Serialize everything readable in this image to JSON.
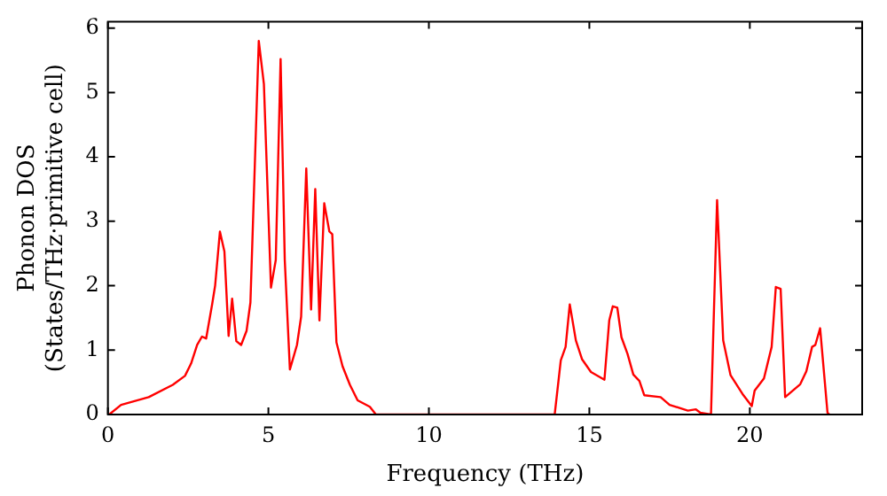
{
  "chart_data": {
    "type": "line",
    "xlabel": "Frequency (THz)",
    "ylabel": "Phonon DOS\n(States/THz·primitive cell)",
    "xlim": [
      0,
      23.5
    ],
    "ylim": [
      0,
      6.1
    ],
    "xticks": [
      0,
      5,
      10,
      15,
      20
    ],
    "yticks": [
      0,
      1,
      2,
      3,
      4,
      5,
      6
    ],
    "grid": false,
    "legend": false,
    "marker": "none",
    "line_style": "solid",
    "series": [
      {
        "color": "#ff0000",
        "x": [
          0.04,
          0.41,
          1.27,
          2.02,
          2.4,
          2.59,
          2.78,
          2.93,
          3.06,
          3.25,
          3.34,
          3.49,
          3.63,
          3.76,
          3.87,
          4.0,
          4.15,
          4.32,
          4.44,
          4.7,
          4.86,
          5.08,
          5.23,
          5.38,
          5.51,
          5.67,
          5.89,
          6.02,
          6.18,
          6.33,
          6.46,
          6.59,
          6.74,
          6.9,
          6.99,
          7.12,
          7.31,
          7.54,
          7.78,
          8.16,
          8.35,
          13.92,
          14.11,
          14.26,
          14.39,
          14.58,
          14.77,
          15.05,
          15.47,
          15.62,
          15.73,
          15.87,
          16.0,
          16.19,
          16.37,
          16.56,
          16.71,
          17.22,
          17.5,
          18.07,
          18.32,
          18.45,
          18.79,
          18.98,
          19.17,
          19.4,
          19.77,
          20.06,
          20.15,
          20.44,
          20.68,
          20.81,
          20.96,
          21.1,
          21.57,
          21.76,
          21.94,
          22.04,
          22.19,
          22.42,
          22.48
        ],
        "values": [
          0,
          0.15,
          0.27,
          0.46,
          0.6,
          0.79,
          1.08,
          1.21,
          1.18,
          1.72,
          2.0,
          2.84,
          2.53,
          1.22,
          1.8,
          1.14,
          1.08,
          1.3,
          1.74,
          5.8,
          5.13,
          1.97,
          2.4,
          5.52,
          2.4,
          0.7,
          1.08,
          1.52,
          3.82,
          1.63,
          3.5,
          1.46,
          3.28,
          2.84,
          2.8,
          1.12,
          0.75,
          0.46,
          0.22,
          0.12,
          0,
          0,
          0.84,
          1.05,
          1.71,
          1.15,
          0.86,
          0.66,
          0.54,
          1.46,
          1.68,
          1.66,
          1.2,
          0.94,
          0.62,
          0.52,
          0.3,
          0.27,
          0.15,
          0.06,
          0.08,
          0.03,
          0,
          3.33,
          1.15,
          0.61,
          0.32,
          0.13,
          0.37,
          0.56,
          1.05,
          1.98,
          1.95,
          0.27,
          0.47,
          0.67,
          1.05,
          1.08,
          1.34,
          0.03,
          0
        ]
      }
    ]
  }
}
